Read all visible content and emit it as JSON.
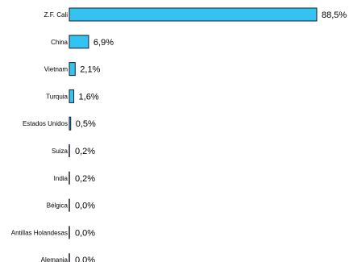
{
  "chart_data": {
    "type": "bar",
    "orientation": "horizontal",
    "categories": [
      "Z.F. Cali",
      "China",
      "Vietnam",
      "Turquia",
      "Estados Unidos",
      "Suiza",
      "India",
      "Bélgica",
      "Antillas Holandesas",
      "Alemania"
    ],
    "values": [
      88.5,
      6.9,
      2.1,
      1.6,
      0.5,
      0.2,
      0.2,
      0.0,
      0.0,
      0.0
    ],
    "value_labels": [
      "88,5%",
      "6,9%",
      "2,1%",
      "1,6%",
      "0,5%",
      "0,2%",
      "0,2%",
      "0,0%",
      "0,0%",
      "0,0%"
    ],
    "value_unit": "%",
    "bar_color": "#33c3f0",
    "bar_border_color": "#1a1a2e",
    "xlim": [
      0,
      88.5
    ],
    "grid": false,
    "legend": "none"
  }
}
